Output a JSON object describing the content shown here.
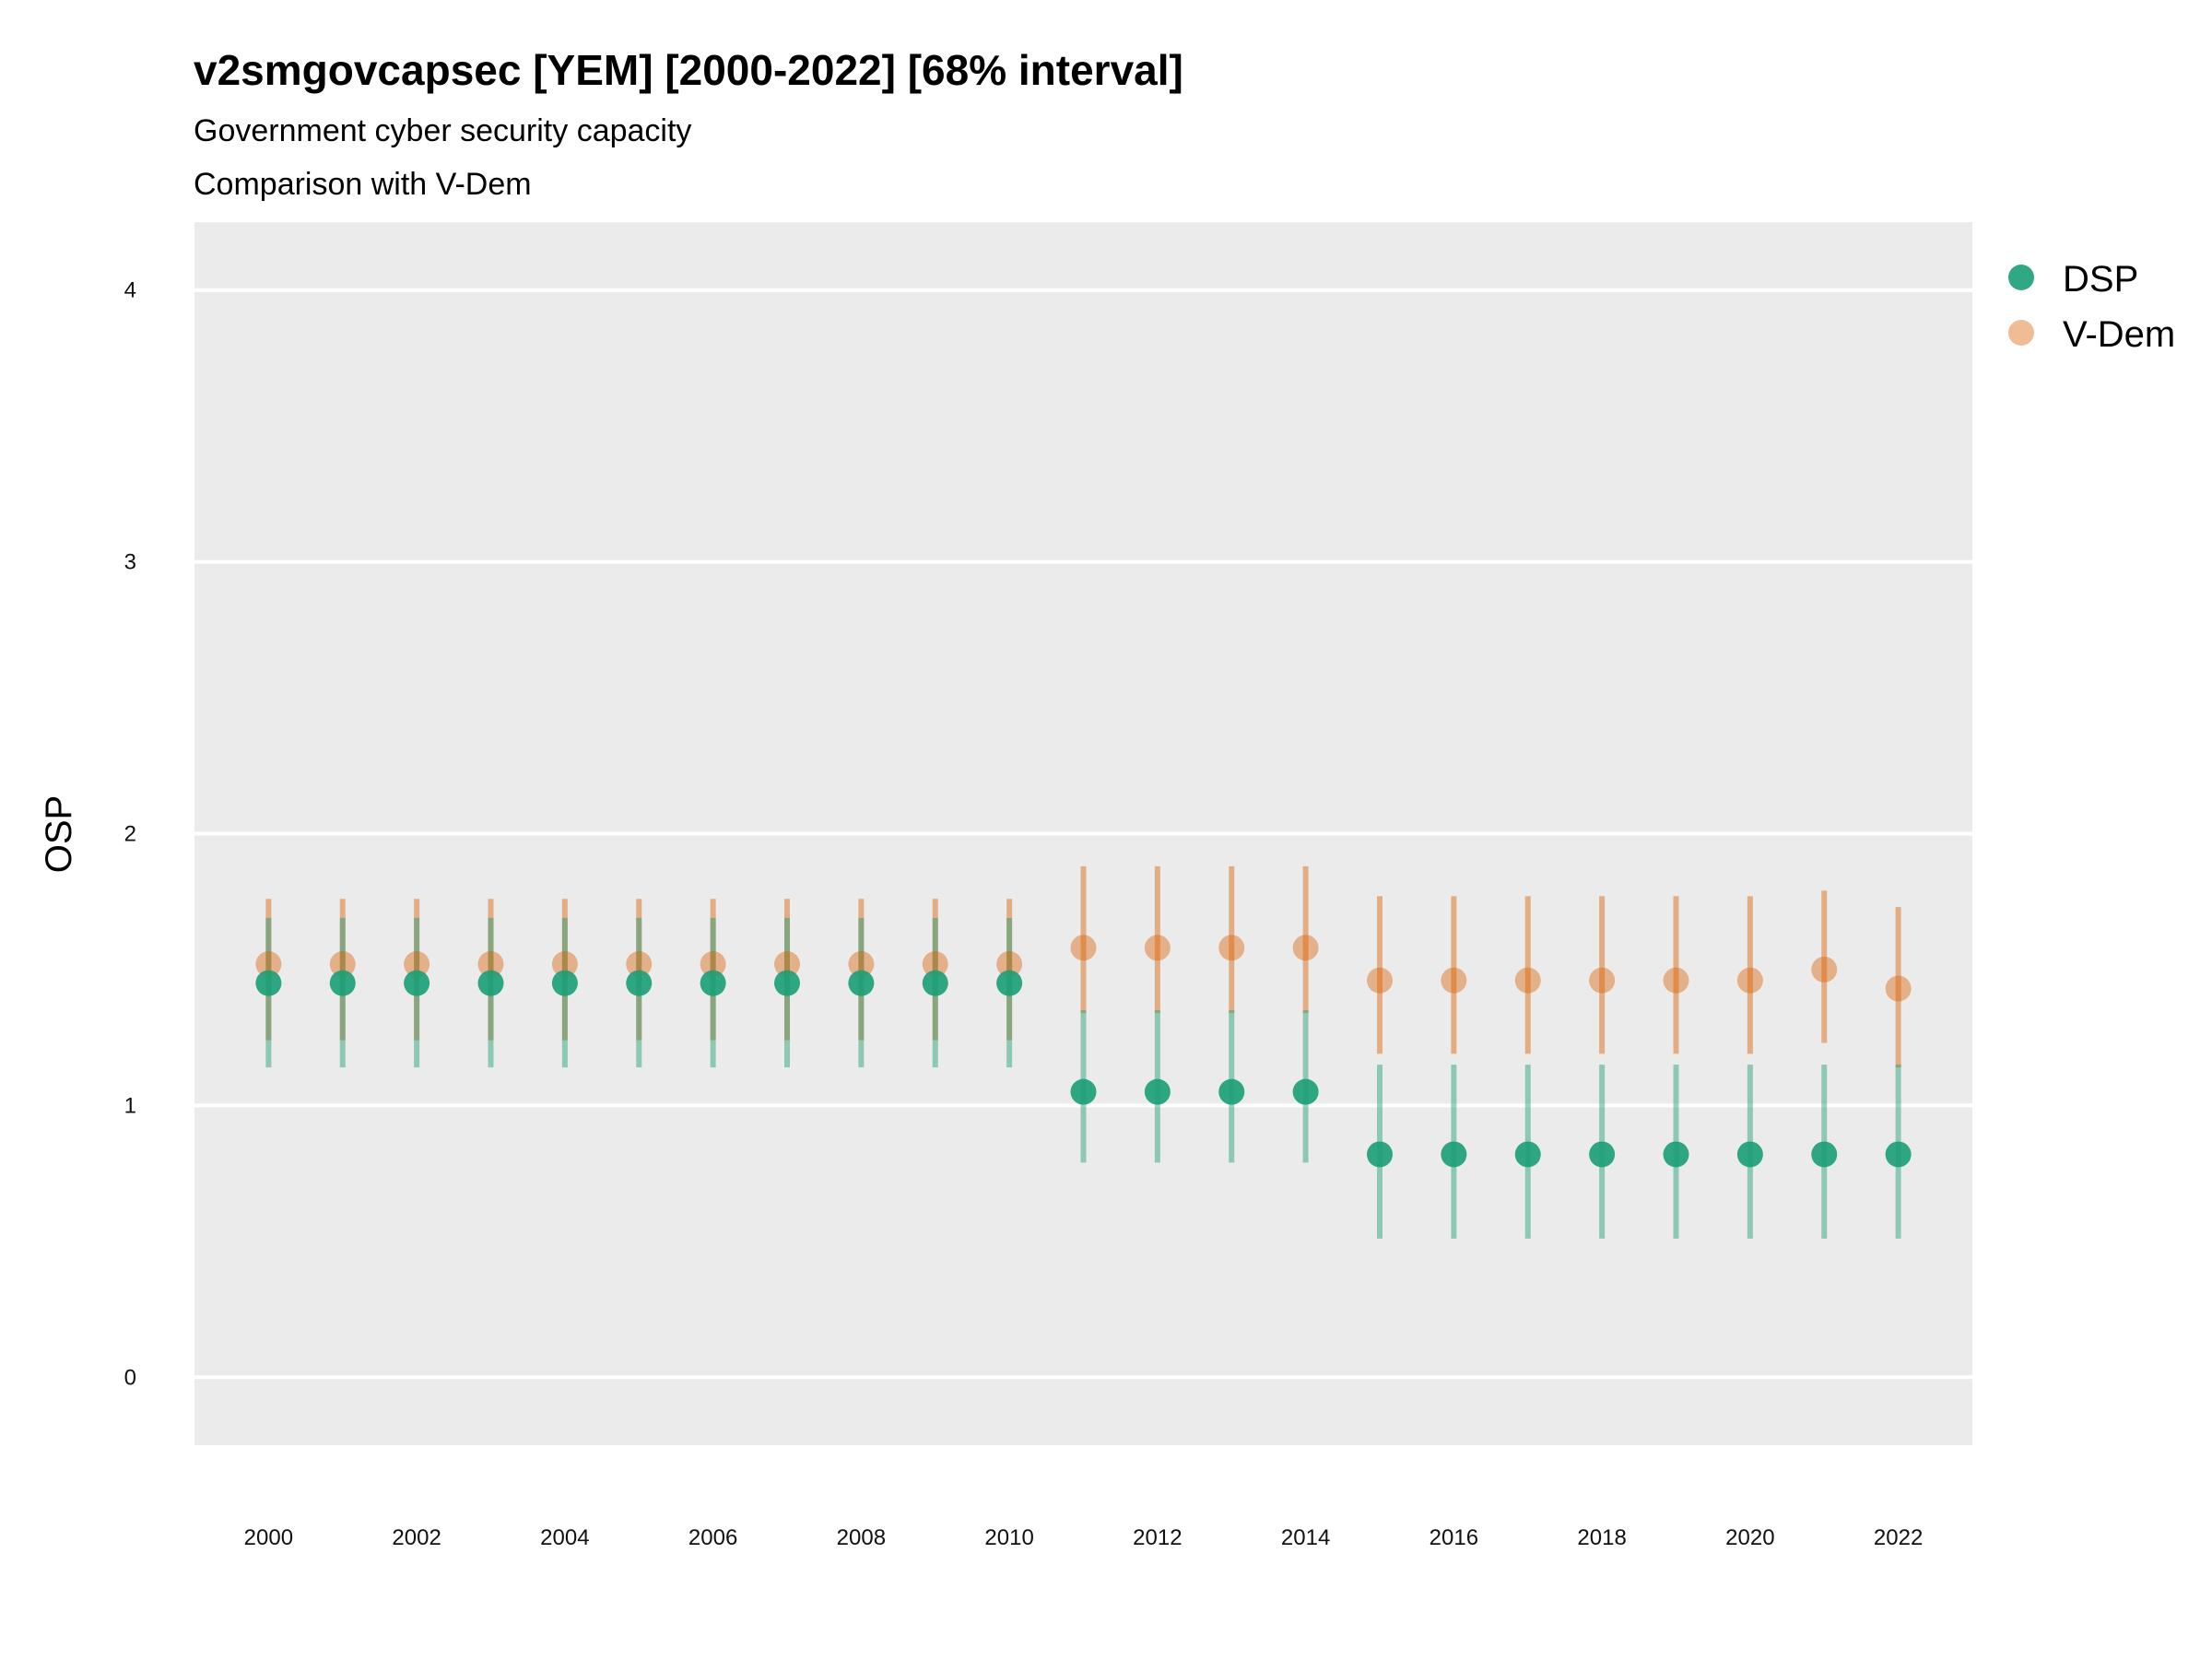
{
  "chart_data": {
    "type": "scatter",
    "title": "v2smgovcapsec [YEM] [2000-2022] [68% interval]",
    "subtitle_lines": [
      "Government cyber security capacity",
      "Comparison with V-Dem"
    ],
    "ylabel": "OSP",
    "xlabel": "",
    "ylim": [
      -0.25,
      4.25
    ],
    "xlim": [
      1999.0,
      2023.0
    ],
    "y_ticks": [
      0,
      1,
      2,
      3,
      4
    ],
    "x_ticks": [
      2000,
      2002,
      2004,
      2006,
      2008,
      2010,
      2012,
      2014,
      2016,
      2018,
      2020,
      2022
    ],
    "grid": true,
    "legend_position": "right-top",
    "series": [
      {
        "name": "DSP",
        "color": "#1b9e77",
        "x": [
          2000,
          2001,
          2002,
          2003,
          2004,
          2005,
          2006,
          2007,
          2008,
          2009,
          2010,
          2011,
          2012,
          2013,
          2014,
          2015,
          2016,
          2017,
          2018,
          2019,
          2020,
          2021,
          2022
        ],
        "y": [
          1.45,
          1.45,
          1.45,
          1.45,
          1.45,
          1.45,
          1.45,
          1.45,
          1.45,
          1.45,
          1.45,
          1.05,
          1.05,
          1.05,
          1.05,
          0.82,
          0.82,
          0.82,
          0.82,
          0.82,
          0.82,
          0.82,
          0.82
        ],
        "lower": [
          1.14,
          1.14,
          1.14,
          1.14,
          1.14,
          1.14,
          1.14,
          1.14,
          1.14,
          1.14,
          1.14,
          0.79,
          0.79,
          0.79,
          0.79,
          0.51,
          0.51,
          0.51,
          0.51,
          0.51,
          0.51,
          0.51,
          0.51
        ],
        "upper": [
          1.69,
          1.69,
          1.69,
          1.69,
          1.69,
          1.69,
          1.69,
          1.69,
          1.69,
          1.69,
          1.69,
          1.35,
          1.35,
          1.35,
          1.35,
          1.15,
          1.15,
          1.15,
          1.15,
          1.15,
          1.15,
          1.15,
          1.15
        ]
      },
      {
        "name": "V-Dem",
        "color": "#d95f02",
        "x": [
          2000,
          2001,
          2002,
          2003,
          2004,
          2005,
          2006,
          2007,
          2008,
          2009,
          2010,
          2011,
          2012,
          2013,
          2014,
          2015,
          2016,
          2017,
          2018,
          2019,
          2020,
          2021,
          2022
        ],
        "y": [
          1.52,
          1.52,
          1.52,
          1.52,
          1.52,
          1.52,
          1.52,
          1.52,
          1.52,
          1.52,
          1.52,
          1.58,
          1.58,
          1.58,
          1.58,
          1.46,
          1.46,
          1.46,
          1.46,
          1.46,
          1.46,
          1.5,
          1.43
        ],
        "lower": [
          1.24,
          1.24,
          1.24,
          1.24,
          1.24,
          1.24,
          1.24,
          1.24,
          1.24,
          1.24,
          1.24,
          1.34,
          1.34,
          1.34,
          1.34,
          1.19,
          1.19,
          1.19,
          1.19,
          1.19,
          1.19,
          1.23,
          1.14
        ],
        "upper": [
          1.76,
          1.76,
          1.76,
          1.76,
          1.76,
          1.76,
          1.76,
          1.76,
          1.76,
          1.76,
          1.76,
          1.88,
          1.88,
          1.88,
          1.88,
          1.77,
          1.77,
          1.77,
          1.77,
          1.77,
          1.77,
          1.79,
          1.73
        ]
      }
    ]
  }
}
